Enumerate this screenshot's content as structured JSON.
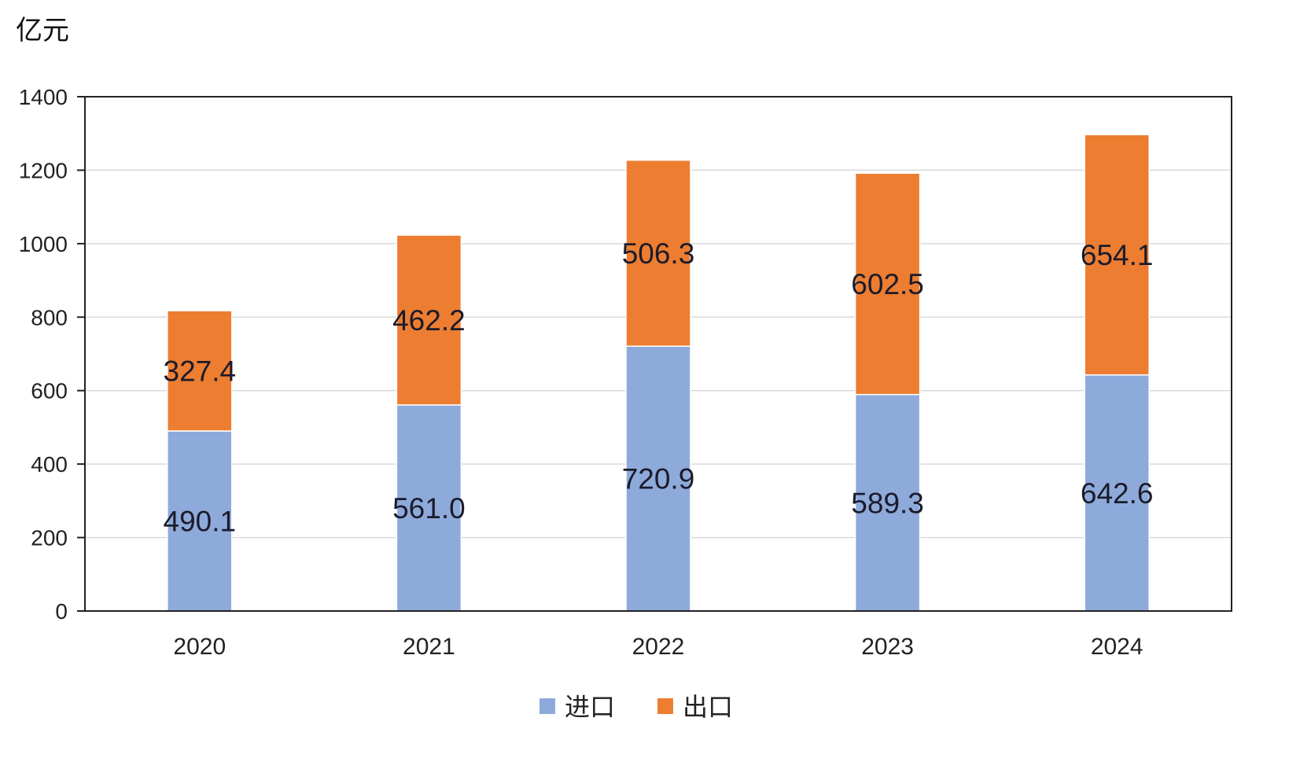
{
  "chart_data": {
    "type": "bar",
    "stacked": true,
    "unit_label": "亿元",
    "categories": [
      "2020",
      "2021",
      "2022",
      "2023",
      "2024"
    ],
    "series": [
      {
        "name": "进口",
        "color": "#8eaadb",
        "values": [
          490.1,
          561.0,
          720.9,
          589.3,
          642.6
        ],
        "labels": [
          "490.1",
          "561.0",
          "720.9",
          "589.3",
          "642.6"
        ]
      },
      {
        "name": "出口",
        "color": "#ed7d31",
        "values": [
          327.4,
          462.2,
          506.3,
          602.5,
          654.1
        ],
        "labels": [
          "327.4",
          "462.2",
          "506.3",
          "602.5",
          "654.1"
        ]
      }
    ],
    "ylim": [
      0,
      1400
    ],
    "yticks": [
      "0",
      "200",
      "400",
      "600",
      "800",
      "1000",
      "1200",
      "1400"
    ],
    "grid": true,
    "legend_position": "bottom-center"
  }
}
